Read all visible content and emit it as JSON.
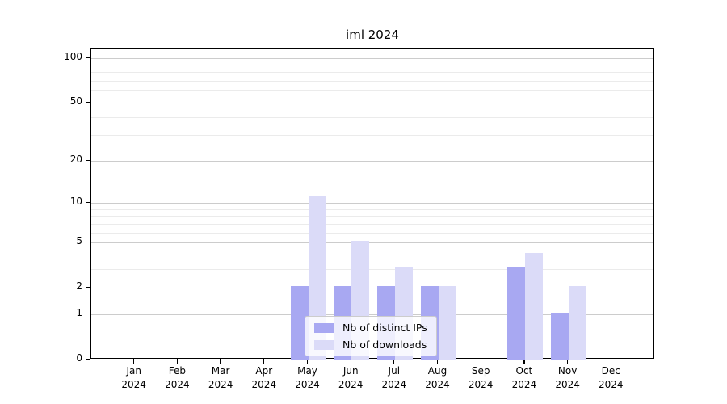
{
  "title": "iml 2024",
  "chart_data": {
    "type": "bar",
    "title": "iml 2024",
    "categories": [
      "Jan 2024",
      "Feb 2024",
      "Mar 2024",
      "Apr 2024",
      "May 2024",
      "Jun 2024",
      "Jul 2024",
      "Aug 2024",
      "Sep 2024",
      "Oct 2024",
      "Nov 2024",
      "Dec 2024"
    ],
    "series": [
      {
        "name": "Nb of distinct IPs",
        "color": "#a8a8f2",
        "values": [
          0,
          0,
          0,
          0,
          2,
          2,
          2,
          2,
          0,
          3,
          1,
          0
        ]
      },
      {
        "name": "Nb of downloads",
        "color": "#dbdbf8",
        "values": [
          0,
          0,
          0,
          0,
          11,
          5,
          3,
          2,
          0,
          4,
          2,
          0
        ]
      }
    ],
    "xlabel": "",
    "ylabel": "",
    "y_axis": {
      "scale": "log10(1+x)",
      "tick_labels": [
        "0",
        "1",
        "2",
        "5",
        "10",
        "20",
        "50",
        "100"
      ],
      "tick_values": [
        0,
        1,
        2,
        5,
        10,
        20,
        50,
        100
      ],
      "minor_gridlines": [
        3,
        4,
        6,
        7,
        8,
        9,
        30,
        40,
        60,
        70,
        80,
        90
      ],
      "ylim": [
        0,
        113
      ]
    },
    "grid": true,
    "legend_position": "bottom-center"
  },
  "colors": {
    "background": "#ffffff",
    "axis": "#000000",
    "major_grid": "#cccccc",
    "minor_grid": "#ebebeb",
    "series_distinct_ips": "#a8a8f2",
    "series_downloads": "#dbdbf8",
    "legend_border": "#cccccc"
  }
}
